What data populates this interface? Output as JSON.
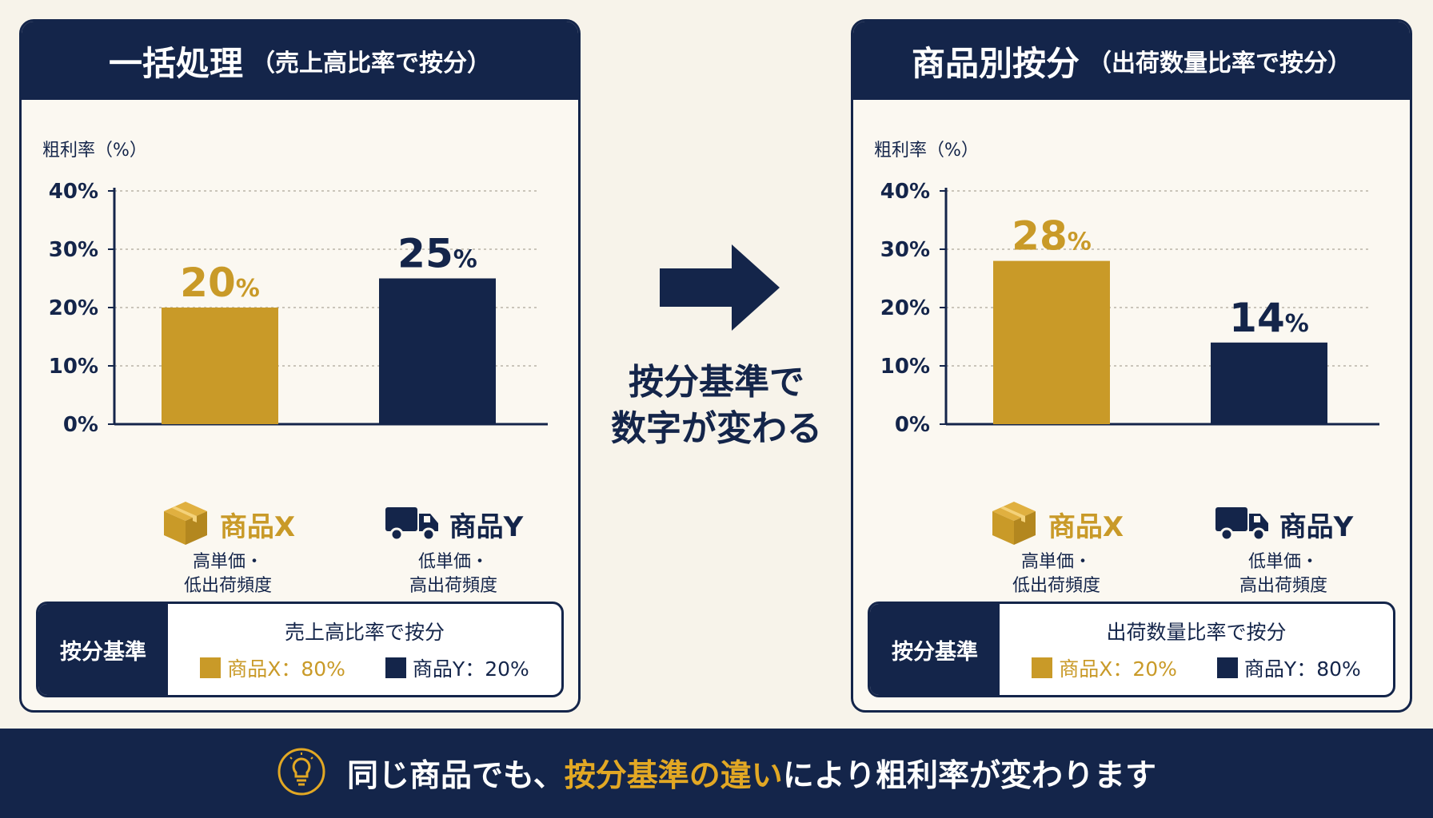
{
  "colors": {
    "navy": "#14254a",
    "gold": "#c99a28",
    "panel_bg": "#fbf8f1",
    "page_bg": "#f7f3ea"
  },
  "left_panel": {
    "title": "一括処理",
    "subtitle": "（売上高比率で按分）",
    "basis_label": "按分基準",
    "basis_title": "売上高比率で按分",
    "basis_x": "商品X：80%",
    "basis_y": "商品Y：20%"
  },
  "right_panel": {
    "title": "商品別按分",
    "subtitle": "（出荷数量比率で按分）",
    "basis_label": "按分基準",
    "basis_title": "出荷数量比率で按分",
    "basis_x": "商品X：20%",
    "basis_y": "商品Y：80%"
  },
  "products": {
    "x": {
      "name": "商品X",
      "desc": "高単価・\n低出荷頻度",
      "icon": "box-icon"
    },
    "y": {
      "name": "商品Y",
      "desc": "低単価・\n高出荷頻度",
      "icon": "truck-icon"
    }
  },
  "middle": {
    "text": "按分基準で\n数字が変わる",
    "icon": "right-arrow-icon"
  },
  "footer": {
    "icon": "lightbulb-icon",
    "text_before": "同じ商品でも、",
    "text_highlight": "按分基準の違い",
    "text_after": "により粗利率が変わります"
  },
  "chart_data": [
    {
      "type": "bar",
      "ylabel": "粗利率（%）",
      "ylim": [
        0,
        40
      ],
      "yticks": [
        "0%",
        "10%",
        "20%",
        "30%",
        "40%"
      ],
      "categories": [
        "商品X",
        "商品Y"
      ],
      "values": [
        20,
        25
      ],
      "value_labels": [
        "20",
        "25"
      ],
      "unit": "%",
      "colors": [
        "#c99a28",
        "#14254a"
      ],
      "grid": true
    },
    {
      "type": "bar",
      "ylabel": "粗利率（%）",
      "ylim": [
        0,
        40
      ],
      "yticks": [
        "0%",
        "10%",
        "20%",
        "30%",
        "40%"
      ],
      "categories": [
        "商品X",
        "商品Y"
      ],
      "values": [
        28,
        14
      ],
      "value_labels": [
        "28",
        "14"
      ],
      "unit": "%",
      "colors": [
        "#c99a28",
        "#14254a"
      ],
      "grid": true
    }
  ]
}
